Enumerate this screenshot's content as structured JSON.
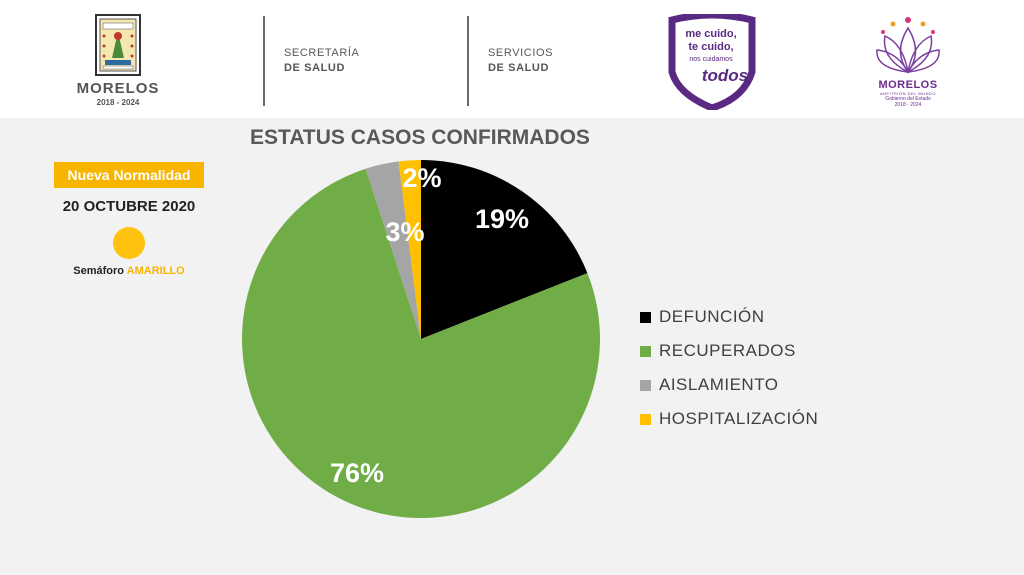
{
  "header": {
    "seal": {
      "name": "MORELOS",
      "years": "2018 - 2024"
    },
    "secretaria": {
      "line1": "SECRETARÍA",
      "line2": "DE SALUD"
    },
    "servicios": {
      "line1": "SERVICIOS",
      "line2": "DE SALUD"
    },
    "campaign": {
      "line1": "me cuido,",
      "line2": "te cuido,",
      "line3": "nos cuidamos",
      "line4": "todos"
    },
    "government": {
      "name": "MORELOS",
      "subtitle": "ANFITRIÓN DEL MUNDO",
      "line1": "Gobierno del Estado",
      "line2": "2018 · 2024"
    }
  },
  "status": {
    "normalidad_label": "Nueva Normalidad",
    "date": "20 OCTUBRE 2020",
    "semaforo_label": "Semáforo",
    "semaforo_level": "AMARILLO",
    "semaforo_color": "#ffc20e"
  },
  "chart_data": {
    "type": "pie",
    "title": "ESTATUS CASOS CONFIRMADOS",
    "categories": [
      "DEFUNCIÓN",
      "RECUPERADOS",
      "AISLAMIENTO",
      "HOSPITALIZACIÓN"
    ],
    "values": [
      19,
      76,
      3,
      2
    ],
    "data_labels": [
      "19%",
      "76%",
      "3%",
      "2%"
    ],
    "colors": [
      "#000000",
      "#70ad47",
      "#a5a5a5",
      "#ffc000"
    ],
    "legend_position": "right"
  }
}
